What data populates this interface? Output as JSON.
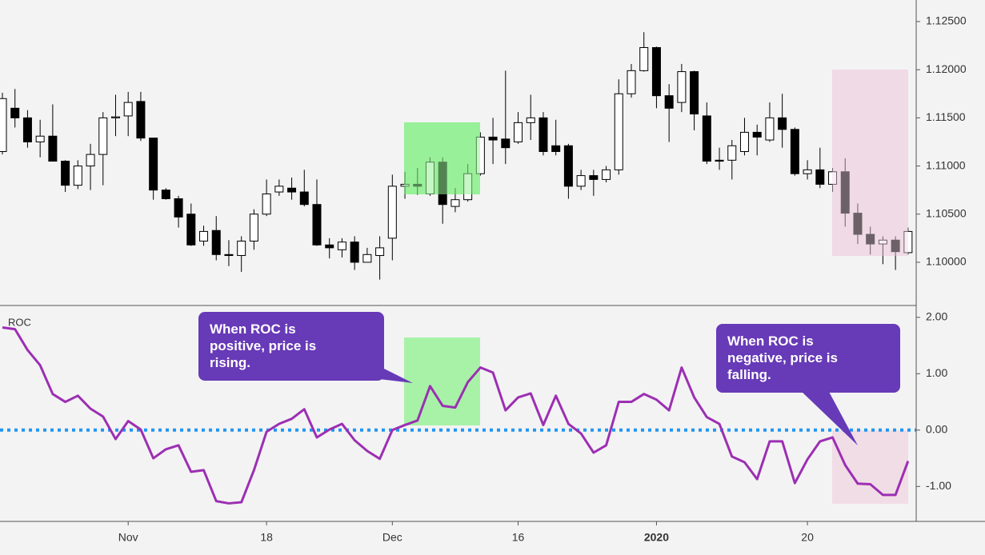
{
  "chart_data": [
    {
      "type": "candlestick",
      "open": [
        1.1115,
        1.116,
        1.115,
        1.1125,
        1.1131,
        1.1105,
        1.108,
        1.11,
        1.1112,
        1.115,
        1.1152,
        1.1167,
        1.1129,
        1.1075,
        1.1066,
        1.105,
        1.1022,
        1.1033,
        1.1008,
        1.1007,
        1.1022,
        1.105,
        1.1073,
        1.1077,
        1.1073,
        1.106,
        1.1018,
        1.1013,
        1.1021,
        1.1,
        1.1007,
        1.1025,
        1.1079,
        1.1081,
        1.1071,
        1.1104,
        1.1058,
        1.1065,
        1.1092,
        1.113,
        1.1128,
        1.1125,
        1.1145,
        1.115,
        1.1121,
        1.1121,
        1.1079,
        1.109,
        1.1086,
        1.1096,
        1.1175,
        1.1199,
        1.1223,
        1.1173,
        1.1166,
        1.1198,
        1.1152,
        1.1106,
        1.1106,
        1.1115,
        1.1135,
        1.1127,
        1.115,
        1.1138,
        1.1092,
        1.1096,
        1.1081,
        1.1094,
        1.1051,
        1.1029,
        1.1019,
        1.1023,
        1.101
      ],
      "high": [
        1.1176,
        1.118,
        1.1158,
        1.1148,
        1.1164,
        1.1106,
        1.1106,
        1.1123,
        1.1156,
        1.1174,
        1.1177,
        1.1177,
        1.1129,
        1.1077,
        1.1069,
        1.1061,
        1.1038,
        1.1048,
        1.1023,
        1.1027,
        1.1055,
        1.1086,
        1.1086,
        1.1088,
        1.1096,
        1.1086,
        1.1025,
        1.1025,
        1.1027,
        1.1015,
        1.1027,
        1.1091,
        1.1094,
        1.1098,
        1.1109,
        1.1109,
        1.1077,
        1.1102,
        1.1135,
        1.115,
        1.1199,
        1.1156,
        1.1174,
        1.1156,
        1.1148,
        1.1123,
        1.1096,
        1.1096,
        1.11,
        1.119,
        1.1206,
        1.1239,
        1.1224,
        1.1185,
        1.1206,
        1.1199,
        1.1166,
        1.1119,
        1.1127,
        1.115,
        1.1143,
        1.1166,
        1.1175,
        1.114,
        1.1106,
        1.1119,
        1.1098,
        1.1108,
        1.1061,
        1.1037,
        1.1027,
        1.1027,
        1.1036
      ],
      "low": [
        1.1112,
        1.114,
        1.1119,
        1.1109,
        1.1105,
        1.1073,
        1.1076,
        1.1075,
        1.108,
        1.1131,
        1.1131,
        1.1126,
        1.1065,
        1.1065,
        1.1036,
        1.1017,
        1.1017,
        1.1002,
        1.0996,
        1.099,
        1.1013,
        1.1048,
        1.1069,
        1.1065,
        1.1058,
        1.1017,
        1.1004,
        1.1005,
        1.0992,
        1.1,
        1.0982,
        1.1002,
        1.1066,
        1.107,
        1.1069,
        1.104,
        1.1052,
        1.1063,
        1.109,
        1.1102,
        1.1102,
        1.1123,
        1.1127,
        1.1111,
        1.1111,
        1.1066,
        1.1075,
        1.1069,
        1.1083,
        1.1091,
        1.1171,
        1.1198,
        1.116,
        1.1125,
        1.1156,
        1.1137,
        1.1102,
        1.1096,
        1.1086,
        1.1111,
        1.1111,
        1.1125,
        1.1119,
        1.109,
        1.1086,
        1.1077,
        1.1073,
        1.1037,
        1.1019,
        1.1008,
        1.0998,
        1.0992,
        1.1008
      ],
      "close": [
        1.117,
        1.115,
        1.1125,
        1.1131,
        1.1105,
        1.108,
        1.11,
        1.1112,
        1.115,
        1.1151,
        1.1166,
        1.1129,
        1.1075,
        1.1066,
        1.1047,
        1.1018,
        1.1032,
        1.1008,
        1.1007,
        1.1022,
        1.105,
        1.1071,
        1.1079,
        1.1073,
        1.106,
        1.1018,
        1.1015,
        1.1021,
        1.1,
        1.1008,
        1.1015,
        1.1079,
        1.1081,
        1.1079,
        1.1104,
        1.106,
        1.1065,
        1.1092,
        1.113,
        1.1127,
        1.1119,
        1.1145,
        1.115,
        1.1115,
        1.1115,
        1.1079,
        1.109,
        1.1086,
        1.1096,
        1.1175,
        1.1199,
        1.1223,
        1.1173,
        1.116,
        1.1198,
        1.1154,
        1.1105,
        1.1105,
        1.1121,
        1.1135,
        1.113,
        1.115,
        1.1138,
        1.1092,
        1.1096,
        1.1081,
        1.1094,
        1.1051,
        1.1029,
        1.1019,
        1.1023,
        1.1011,
        1.1032
      ],
      "up_color": "#ffffff",
      "down_color": "#000000",
      "ylim": [
        1.09551,
        1.12724
      ],
      "yticks": [
        {
          "value": 1.1,
          "label": "1.10000"
        },
        {
          "value": 1.105,
          "label": "1.10500"
        },
        {
          "value": 1.11,
          "label": "1.11000"
        },
        {
          "value": 1.115,
          "label": "1.11500"
        },
        {
          "value": 1.12,
          "label": "1.12000"
        },
        {
          "value": 1.125,
          "label": "1.12500"
        }
      ]
    },
    {
      "type": "line",
      "title": "ROC",
      "color": "#9c2fb3",
      "categories": [
        null,
        null,
        null,
        null,
        null,
        null,
        null,
        null,
        null,
        null,
        "Nov",
        null,
        null,
        null,
        null,
        null,
        null,
        null,
        null,
        null,
        null,
        "18",
        null,
        null,
        null,
        null,
        null,
        null,
        null,
        null,
        null,
        "Dec",
        null,
        null,
        null,
        null,
        null,
        null,
        null,
        null,
        null,
        "16",
        null,
        null,
        null,
        null,
        null,
        null,
        null,
        null,
        null,
        null,
        "2020",
        null,
        null,
        null,
        null,
        null,
        null,
        null,
        null,
        null,
        null,
        null,
        "20",
        null,
        null,
        null,
        null,
        null,
        null,
        null,
        null
      ],
      "values": [
        1.82,
        1.79,
        1.42,
        1.15,
        0.64,
        0.5,
        0.61,
        0.38,
        0.24,
        -0.16,
        0.16,
        0.01,
        -0.5,
        -0.34,
        -0.27,
        -0.74,
        -0.71,
        -1.26,
        -1.3,
        -1.28,
        -0.71,
        -0.03,
        0.11,
        0.2,
        0.37,
        -0.13,
        0.01,
        0.11,
        -0.18,
        -0.37,
        -0.51,
        0.0,
        0.09,
        0.17,
        0.78,
        0.43,
        0.4,
        0.85,
        1.11,
        1.02,
        0.35,
        0.58,
        0.65,
        0.09,
        0.61,
        0.11,
        -0.06,
        -0.4,
        -0.27,
        0.5,
        0.5,
        0.64,
        0.54,
        0.35,
        1.11,
        0.58,
        0.23,
        0.11,
        -0.47,
        -0.57,
        -0.87,
        -0.2,
        -0.2,
        -0.94,
        -0.52,
        -0.2,
        -0.13,
        -0.62,
        -0.95,
        -0.96,
        -1.15,
        -1.15,
        -0.55
      ],
      "ylim": [
        -1.62,
        2.21
      ],
      "yticks": [
        {
          "value": 2,
          "label": "2.00"
        },
        {
          "value": 1,
          "label": "1.00"
        },
        {
          "value": 0,
          "label": "0.00"
        },
        {
          "value": -1,
          "label": "-1.00"
        }
      ],
      "zero_line": {
        "value": 0,
        "color": "#2196f3"
      },
      "annotations": [
        {
          "text": "When ROC is positive, price is rising."
        },
        {
          "text": "When ROC is negative, price is falling."
        }
      ]
    }
  ]
}
